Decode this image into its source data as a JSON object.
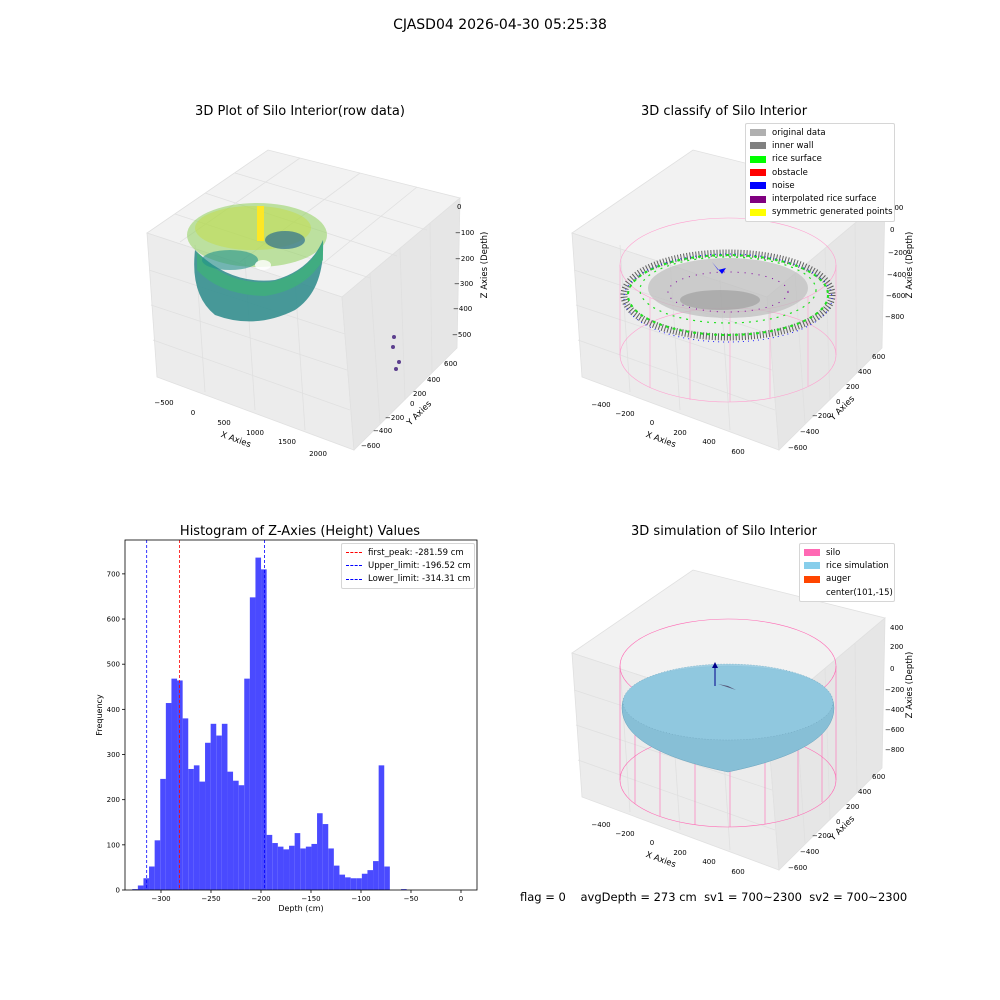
{
  "suptitle": "CJASD04 2026-04-30 05:25:38",
  "panel_raw": {
    "title": "3D Plot of Silo Interior(row data)",
    "xlabel": "X Axies",
    "ylabel": "Y Axies",
    "zlabel": "Z Axies (Depth)",
    "xticks": [
      "−500",
      "0",
      "500",
      "1000",
      "1500",
      "2000"
    ],
    "yticks": [
      "600",
      "400",
      "200",
      "0",
      "−200",
      "−400",
      "−600"
    ],
    "zticks": [
      "0",
      "−100",
      "−200",
      "−300",
      "−400",
      "−500"
    ],
    "colormap": [
      "#fde725",
      "#5ec962",
      "#21918c",
      "#3b528b",
      "#440154"
    ]
  },
  "panel_classify": {
    "title": "3D classify of Silo Interior",
    "xlabel": "X Axies",
    "ylabel": "Y Axies",
    "zlabel": "Z Axies (Depth)",
    "xticks": [
      "−400",
      "−200",
      "0",
      "200",
      "400",
      "600"
    ],
    "yticks": [
      "600",
      "400",
      "200",
      "0",
      "−200",
      "−400",
      "−600"
    ],
    "zticks": [
      "200",
      "0",
      "−200",
      "−400",
      "−600",
      "−800"
    ],
    "legend": [
      {
        "label": "original data",
        "color": "#b0b0b0"
      },
      {
        "label": "inner wall",
        "color": "#808080"
      },
      {
        "label": "rice surface",
        "color": "#00ff00"
      },
      {
        "label": "obstacle",
        "color": "#ff0000"
      },
      {
        "label": "noise",
        "color": "#0000ff"
      },
      {
        "label": "interpolated rice surface",
        "color": "#800080"
      },
      {
        "label": "symmetric generated points",
        "color": "#ffff00"
      }
    ]
  },
  "panel_sim": {
    "title": "3D simulation of Silo Interior",
    "xlabel": "X Axies",
    "ylabel": "Y Axies",
    "zlabel": "Z Axies (Depth)",
    "xticks": [
      "−400",
      "−200",
      "0",
      "200",
      "400",
      "600"
    ],
    "yticks": [
      "600",
      "400",
      "200",
      "0",
      "−200",
      "−400",
      "−600"
    ],
    "zticks": [
      "400",
      "200",
      "0",
      "−200",
      "−400",
      "−600",
      "−800"
    ],
    "legend": [
      {
        "label": "silo",
        "color": "#ff69b4"
      },
      {
        "label": "rice simulation",
        "color": "#87ceeb"
      },
      {
        "label": "auger",
        "color": "#ff4500"
      },
      {
        "label": "center(101,-15)",
        "color": "#ffffff"
      }
    ]
  },
  "footer": {
    "flag": "flag = 0",
    "avg": "avgDepth = 273 cm",
    "sv1": "sv1 = 700~2300",
    "sv2": "sv2 = 700~2300"
  },
  "chart_data": {
    "type": "bar",
    "title": "Histogram of Z-Axies (Height) Values",
    "xlabel": "Depth (cm)",
    "ylabel": "Frequency",
    "xlim": [
      -336,
      16
    ],
    "ylim": [
      0,
      775
    ],
    "xticks": [
      -300,
      -250,
      -200,
      -150,
      -100,
      -50,
      0
    ],
    "xtick_labels": [
      "−300",
      "−250",
      "−200",
      "−150",
      "−100",
      "−50",
      "0"
    ],
    "yticks": [
      0,
      100,
      200,
      300,
      400,
      500,
      600,
      700
    ],
    "bar_color": "#4a4aff",
    "bin_start": -328.75,
    "bin_width": 5.6,
    "values": [
      2,
      10,
      26,
      52,
      110,
      246,
      414,
      468,
      464,
      380,
      268,
      276,
      240,
      326,
      368,
      342,
      368,
      262,
      242,
      232,
      468,
      648,
      736,
      710,
      122,
      104,
      96,
      90,
      98,
      126,
      92,
      96,
      102,
      170,
      146,
      92,
      54,
      34,
      28,
      26,
      26,
      36,
      44,
      64,
      276,
      52,
      0,
      0,
      2
    ],
    "lines": [
      {
        "label": "first_peak: -281.59 cm",
        "x": -281.59,
        "color": "#ff0000"
      },
      {
        "label": "Upper_limit: -196.52 cm",
        "x": -196.52,
        "color": "#0000ff"
      },
      {
        "label": "Lower_limit: -314.31 cm",
        "x": -314.31,
        "color": "#0000ff"
      }
    ]
  }
}
